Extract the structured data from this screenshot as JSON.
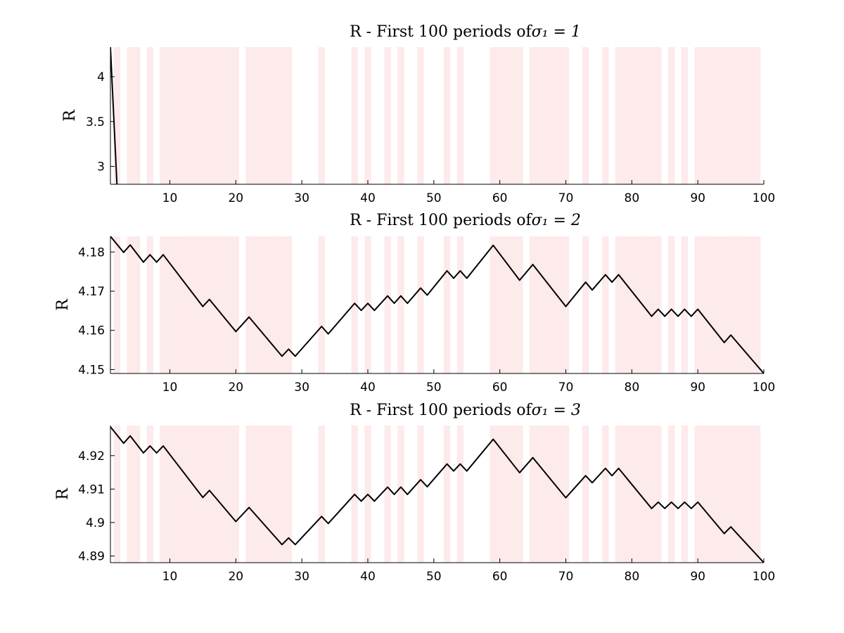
{
  "figure": {
    "background": "#ffffff",
    "shade_color": "#fdeaea",
    "line_color": "#000000",
    "axis_color": "#000000"
  },
  "shaded_periods": [
    2,
    4,
    5,
    7,
    9,
    10,
    11,
    12,
    13,
    14,
    15,
    16,
    17,
    18,
    19,
    20,
    22,
    23,
    24,
    25,
    26,
    27,
    28,
    33,
    38,
    40,
    43,
    45,
    48,
    52,
    54,
    59,
    60,
    61,
    62,
    63,
    65,
    66,
    67,
    68,
    69,
    70,
    73,
    76,
    78,
    79,
    80,
    81,
    82,
    83,
    84,
    86,
    88,
    90,
    91,
    92,
    93,
    94,
    95,
    96,
    97,
    98,
    99
  ],
  "chart_data": [
    {
      "type": "line",
      "title": "R - First 100 periods of",
      "title_math": "σ₁ = 1",
      "ylabel": "R",
      "xlim": [
        1,
        100
      ],
      "ylim": [
        2.8,
        4.33
      ],
      "xticks": [
        10,
        20,
        30,
        40,
        50,
        60,
        70,
        80,
        90,
        100
      ],
      "yticks": [
        3,
        3.5,
        4
      ],
      "ytick_labels": [
        "3",
        "3.5",
        "4"
      ],
      "xtick_labels": [
        "10",
        "20",
        "30",
        "40",
        "50",
        "60",
        "70",
        "80",
        "90",
        "100"
      ],
      "series": [
        {
          "x": [
            1,
            2,
            3,
            100
          ],
          "y": [
            4.33,
            2.78,
            2.78,
            2.78
          ]
        }
      ]
    },
    {
      "type": "line",
      "title": "R - First 100 periods of",
      "title_math": "σ₁ = 2",
      "ylabel": "R",
      "xlim": [
        1,
        100
      ],
      "ylim": [
        4.149,
        4.184
      ],
      "xticks": [
        10,
        20,
        30,
        40,
        50,
        60,
        70,
        80,
        90,
        100
      ],
      "yticks": [
        4.15,
        4.16,
        4.17,
        4.18
      ],
      "ytick_labels": [
        "4.15",
        "4.16",
        "4.17",
        "4.18"
      ],
      "xtick_labels": [
        "10",
        "20",
        "30",
        "40",
        "50",
        "60",
        "70",
        "80",
        "90",
        "100"
      ],
      "series": [
        {
          "x": [
            1,
            3,
            4,
            6,
            7,
            8,
            9,
            15,
            16,
            20,
            22,
            27,
            28,
            29,
            33,
            34,
            38,
            39,
            40,
            41,
            43,
            44,
            45,
            46,
            48,
            49,
            52,
            53,
            54,
            55,
            59,
            63,
            65,
            70,
            73,
            74,
            76,
            77,
            78,
            83,
            84,
            85,
            86,
            87,
            88,
            89,
            90,
            94,
            95,
            100
          ],
          "y": [
            4.184,
            4.1799,
            4.1818,
            4.1774,
            4.1793,
            4.1774,
            4.1793,
            4.1661,
            4.1679,
            4.1597,
            4.1634,
            4.1534,
            4.1552,
            4.1534,
            4.161,
            4.1591,
            4.1669,
            4.1651,
            4.1669,
            4.1651,
            4.1688,
            4.1669,
            4.1688,
            4.1669,
            4.1708,
            4.169,
            4.1752,
            4.1733,
            4.1752,
            4.1733,
            4.1817,
            4.1728,
            4.1768,
            4.1661,
            4.1723,
            4.1703,
            4.1742,
            4.1723,
            4.1742,
            4.1636,
            4.1654,
            4.1636,
            4.1654,
            4.1636,
            4.1654,
            4.1636,
            4.1654,
            4.1569,
            4.1588,
            4.149
          ]
        }
      ]
    },
    {
      "type": "line",
      "title": "R - First 100 periods of",
      "title_math": "σ₁ = 3",
      "ylabel": "R",
      "xlim": [
        1,
        100
      ],
      "ylim": [
        4.888,
        4.929
      ],
      "xticks": [
        10,
        20,
        30,
        40,
        50,
        60,
        70,
        80,
        90,
        100
      ],
      "yticks": [
        4.89,
        4.9,
        4.91,
        4.92
      ],
      "ytick_labels": [
        "4.89",
        "4.9",
        "4.91",
        "4.92"
      ],
      "xtick_labels": [
        "10",
        "20",
        "30",
        "40",
        "50",
        "60",
        "70",
        "80",
        "90",
        "100"
      ],
      "series": [
        {
          "x": [
            1,
            3,
            4,
            6,
            7,
            8,
            9,
            15,
            16,
            20,
            22,
            27,
            28,
            29,
            33,
            34,
            38,
            39,
            40,
            41,
            43,
            44,
            45,
            46,
            48,
            49,
            52,
            53,
            54,
            55,
            59,
            63,
            65,
            70,
            73,
            74,
            76,
            77,
            78,
            83,
            84,
            85,
            86,
            87,
            88,
            89,
            90,
            94,
            95,
            100
          ],
          "y": [
            4.9286,
            4.9237,
            4.9259,
            4.9208,
            4.9229,
            4.9208,
            4.9229,
            4.9075,
            4.9096,
            4.9003,
            4.9045,
            4.8934,
            4.8954,
            4.8934,
            4.9018,
            4.8997,
            4.9084,
            4.9064,
            4.9084,
            4.9064,
            4.9106,
            4.9084,
            4.9106,
            4.9084,
            4.9128,
            4.9107,
            4.9175,
            4.9154,
            4.9175,
            4.9154,
            4.9249,
            4.9149,
            4.9194,
            4.9074,
            4.914,
            4.9119,
            4.9162,
            4.914,
            4.9162,
            4.9042,
            4.9061,
            4.9042,
            4.9061,
            4.9042,
            4.9061,
            4.9042,
            4.9061,
            4.8967,
            4.8987,
            4.888
          ]
        }
      ]
    }
  ]
}
